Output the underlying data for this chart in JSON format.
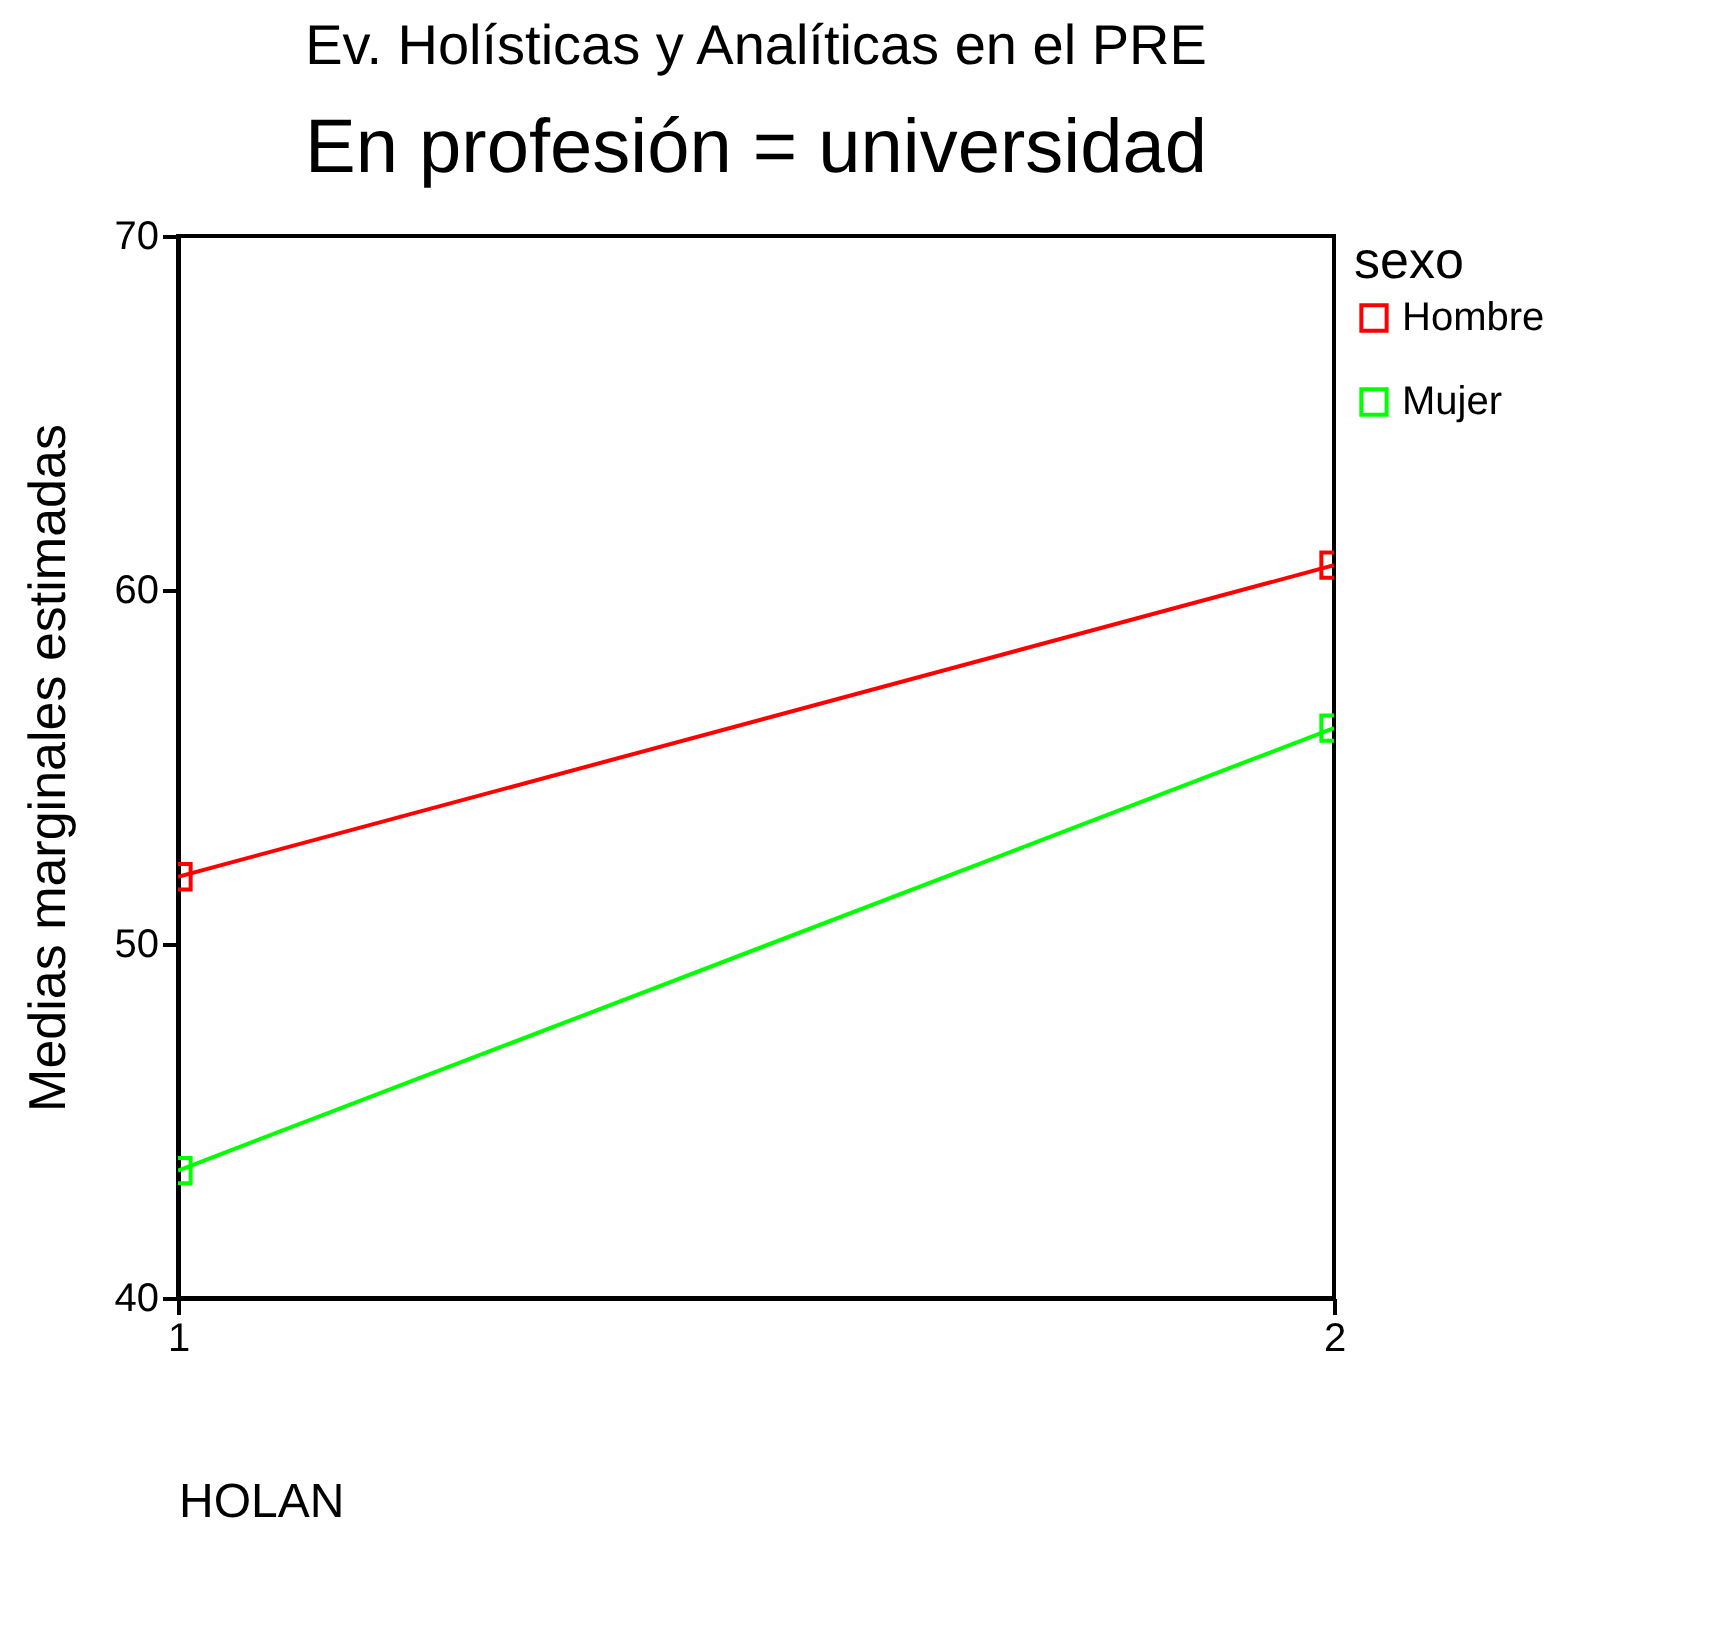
{
  "chart_data": {
    "type": "line",
    "title": "Ev. Holísticas y Analíticas en el PRE",
    "subtitle": "En profesión = universidad",
    "xlabel": "HOLAN",
    "ylabel": "Medias marginales estimadas",
    "legend_title": "sexo",
    "x": [
      1,
      2
    ],
    "xlim": [
      1,
      2
    ],
    "xticks": [
      1,
      2
    ],
    "ylim": [
      40,
      70
    ],
    "yticks": [
      40,
      50,
      60,
      70
    ],
    "grid": false,
    "legend": "right",
    "marker": "square",
    "line_style": "solid",
    "series": [
      {
        "name": "Hombre",
        "color": "#ff0000",
        "values": [
          51.9,
          60.7
        ]
      },
      {
        "name": "Mujer",
        "color": "#00ff00",
        "values": [
          43.6,
          56.1
        ]
      }
    ]
  }
}
